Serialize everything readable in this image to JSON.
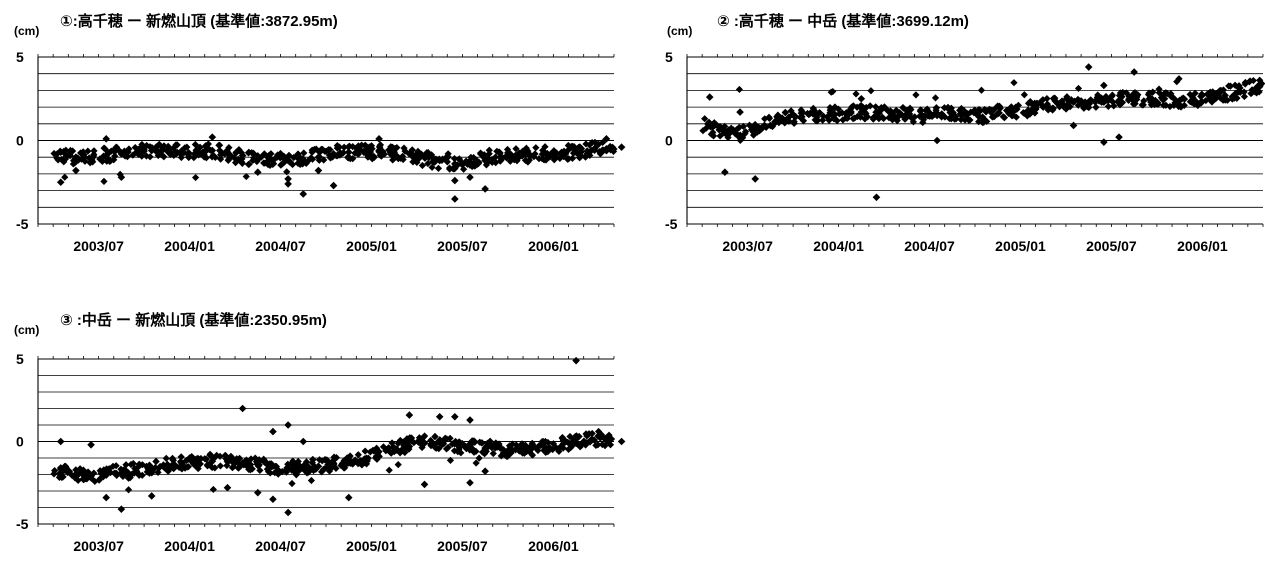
{
  "chart_data": [
    {
      "type": "scatter",
      "title": "①:高千穂 ー 新燃山頂 (基準値:3872.95m)",
      "ylabel": "(cm)",
      "ylim": [
        -5,
        5
      ],
      "yticks": [
        "5",
        "0",
        "-5"
      ],
      "xlim": [
        "2003-03",
        "2006-05"
      ],
      "xticks": [
        "2003/07",
        "2004/01",
        "2004/07",
        "2005/01",
        "2005/07",
        "2006/01"
      ],
      "grid": true,
      "series": [
        {
          "points": [
            [
              "2003-04",
              -0.7
            ],
            [
              "2003-05",
              -1.0
            ],
            [
              "2003-06",
              -1.1
            ],
            [
              "2003-07",
              -0.9
            ],
            [
              "2003-08",
              -0.8
            ],
            [
              "2003-09",
              -0.7
            ],
            [
              "2003-10",
              -0.6
            ],
            [
              "2003-11",
              -0.6
            ],
            [
              "2003-12",
              -0.6
            ],
            [
              "2004-01",
              -0.6
            ],
            [
              "2004-02",
              -0.6
            ],
            [
              "2004-03",
              -0.7
            ],
            [
              "2004-04",
              -0.9
            ],
            [
              "2004-05",
              -1.1
            ],
            [
              "2004-06",
              -1.2
            ],
            [
              "2004-07",
              -1.2
            ],
            [
              "2004-08",
              -1.2
            ],
            [
              "2004-09",
              -1.0
            ],
            [
              "2004-10",
              -0.8
            ],
            [
              "2004-11",
              -0.7
            ],
            [
              "2004-12",
              -0.7
            ],
            [
              "2005-01",
              -0.6
            ],
            [
              "2005-02",
              -0.7
            ],
            [
              "2005-03",
              -0.8
            ],
            [
              "2005-04",
              -1.0
            ],
            [
              "2005-05",
              -1.2
            ],
            [
              "2005-06",
              -1.4
            ],
            [
              "2005-07",
              -1.4
            ],
            [
              "2005-08",
              -1.2
            ],
            [
              "2005-09",
              -1.0
            ],
            [
              "2005-10",
              -0.9
            ],
            [
              "2005-11",
              -0.9
            ],
            [
              "2005-12",
              -0.8
            ],
            [
              "2006-01",
              -0.8
            ],
            [
              "2006-02",
              -0.7
            ],
            [
              "2006-03",
              -0.6
            ],
            [
              "2006-04",
              -0.5
            ],
            [
              "2006-05",
              -0.4
            ],
            [
              "2003-04",
              -2.5
            ],
            [
              "2003-05",
              -1.8
            ],
            [
              "2003-08",
              -2.2
            ],
            [
              "2003-07",
              0.1
            ],
            [
              "2004-02",
              0.2
            ],
            [
              "2004-05",
              -1.9
            ],
            [
              "2004-07",
              -2.6
            ],
            [
              "2004-08",
              -3.2
            ],
            [
              "2004-07",
              -2.3
            ],
            [
              "2004-09",
              -1.8
            ],
            [
              "2004-10",
              -2.7
            ],
            [
              "2005-01",
              0.1
            ],
            [
              "2005-06",
              -3.5
            ],
            [
              "2005-06",
              -2.4
            ],
            [
              "2005-07",
              -2.2
            ],
            [
              "2005-08",
              -2.9
            ],
            [
              "2006-04",
              0.1
            ]
          ]
        }
      ]
    },
    {
      "type": "scatter",
      "title": "② :高千穂 ー 中岳 (基準値:3699.12m)",
      "ylabel": "(cm)",
      "ylim": [
        -5,
        5
      ],
      "yticks": [
        "5",
        "0",
        "-5"
      ],
      "xlim": [
        "2003-03",
        "2006-05"
      ],
      "xticks": [
        "2003/07",
        "2004/01",
        "2004/07",
        "2005/01",
        "2005/07",
        "2006/01"
      ],
      "grid": true,
      "series": [
        {
          "points": [
            [
              "2003-04",
              1.0
            ],
            [
              "2003-05",
              0.6
            ],
            [
              "2003-06",
              0.3
            ],
            [
              "2003-07",
              0.5
            ],
            [
              "2003-08",
              0.9
            ],
            [
              "2003-09",
              1.2
            ],
            [
              "2003-10",
              1.4
            ],
            [
              "2003-11",
              1.5
            ],
            [
              "2003-12",
              1.6
            ],
            [
              "2004-01",
              1.6
            ],
            [
              "2004-02",
              1.7
            ],
            [
              "2004-03",
              1.7
            ],
            [
              "2004-04",
              1.7
            ],
            [
              "2004-05",
              1.6
            ],
            [
              "2004-06",
              1.5
            ],
            [
              "2004-07",
              1.5
            ],
            [
              "2004-08",
              1.6
            ],
            [
              "2004-09",
              1.6
            ],
            [
              "2004-10",
              1.4
            ],
            [
              "2004-11",
              1.6
            ],
            [
              "2004-12",
              1.7
            ],
            [
              "2005-01",
              1.8
            ],
            [
              "2005-02",
              2.0
            ],
            [
              "2005-03",
              2.2
            ],
            [
              "2005-04",
              2.3
            ],
            [
              "2005-05",
              2.3
            ],
            [
              "2005-06",
              2.3
            ],
            [
              "2005-07",
              2.4
            ],
            [
              "2005-08",
              2.5
            ],
            [
              "2005-09",
              2.5
            ],
            [
              "2005-10",
              2.5
            ],
            [
              "2005-11",
              2.4
            ],
            [
              "2005-12",
              2.4
            ],
            [
              "2006-01",
              2.5
            ],
            [
              "2006-02",
              2.7
            ],
            [
              "2006-03",
              2.9
            ],
            [
              "2006-04",
              3.1
            ],
            [
              "2006-05",
              3.4
            ],
            [
              "2003-04",
              2.6
            ],
            [
              "2003-05",
              -1.9
            ],
            [
              "2003-07",
              -2.3
            ],
            [
              "2004-03",
              -3.4
            ],
            [
              "2004-02",
              2.5
            ],
            [
              "2005-05",
              4.4
            ],
            [
              "2005-08",
              4.1
            ],
            [
              "2005-06",
              -0.1
            ],
            [
              "2005-07",
              0.2
            ],
            [
              "2005-06",
              3.3
            ],
            [
              "2004-07",
              0.0
            ],
            [
              "2003-06",
              1.7
            ],
            [
              "2005-04",
              0.9
            ]
          ]
        }
      ]
    },
    {
      "type": "scatter",
      "title": "③ :中岳 ー 新燃山頂 (基準値:2350.95m)",
      "ylabel": "(cm)",
      "ylim": [
        -5,
        5
      ],
      "yticks": [
        "5",
        "0",
        "-5"
      ],
      "xlim": [
        "2003-03",
        "2006-05"
      ],
      "xticks": [
        "2003/07",
        "2004/01",
        "2004/07",
        "2005/01",
        "2005/07",
        "2006/01"
      ],
      "grid": true,
      "series": [
        {
          "points": [
            [
              "2003-04",
              -1.6
            ],
            [
              "2003-05",
              -2.0
            ],
            [
              "2003-06",
              -2.1
            ],
            [
              "2003-07",
              -2.0
            ],
            [
              "2003-08",
              -1.9
            ],
            [
              "2003-09",
              -1.8
            ],
            [
              "2003-10",
              -1.6
            ],
            [
              "2003-11",
              -1.5
            ],
            [
              "2003-12",
              -1.3
            ],
            [
              "2004-01",
              -1.3
            ],
            [
              "2004-02",
              -1.2
            ],
            [
              "2004-03",
              -1.2
            ],
            [
              "2004-04",
              -1.3
            ],
            [
              "2004-05",
              -1.4
            ],
            [
              "2004-06",
              -1.5
            ],
            [
              "2004-07",
              -1.6
            ],
            [
              "2004-08",
              -1.6
            ],
            [
              "2004-09",
              -1.5
            ],
            [
              "2004-10",
              -1.4
            ],
            [
              "2004-11",
              -1.3
            ],
            [
              "2004-12",
              -1.1
            ],
            [
              "2005-01",
              -0.9
            ],
            [
              "2005-02",
              -0.6
            ],
            [
              "2005-03",
              -0.3
            ],
            [
              "2005-04",
              -0.1
            ],
            [
              "2005-05",
              0.0
            ],
            [
              "2005-06",
              -0.1
            ],
            [
              "2005-07",
              -0.3
            ],
            [
              "2005-08",
              -0.4
            ],
            [
              "2005-09",
              -0.4
            ],
            [
              "2005-10",
              -0.5
            ],
            [
              "2005-11",
              -0.5
            ],
            [
              "2005-12",
              -0.4
            ],
            [
              "2006-01",
              -0.3
            ],
            [
              "2006-02",
              -0.1
            ],
            [
              "2006-03",
              0.1
            ],
            [
              "2006-04",
              0.2
            ],
            [
              "2006-05",
              0.0
            ],
            [
              "2003-07",
              -3.4
            ],
            [
              "2003-08",
              -4.1
            ],
            [
              "2003-10",
              -3.3
            ],
            [
              "2003-04",
              0.0
            ],
            [
              "2003-06",
              -0.2
            ],
            [
              "2004-04",
              2.0
            ],
            [
              "2004-05",
              -3.1
            ],
            [
              "2004-06",
              -3.5
            ],
            [
              "2004-07",
              -4.3
            ],
            [
              "2004-07",
              1.0
            ],
            [
              "2004-06",
              0.6
            ],
            [
              "2004-08",
              0.0
            ],
            [
              "2004-11",
              -3.4
            ],
            [
              "2005-03",
              1.6
            ],
            [
              "2005-05",
              1.5
            ],
            [
              "2005-06",
              1.5
            ],
            [
              "2005-07",
              1.3
            ],
            [
              "2005-04",
              -2.6
            ],
            [
              "2005-07",
              -2.5
            ],
            [
              "2005-08",
              -1.8
            ],
            [
              "2006-02",
              4.9
            ],
            [
              "2004-03",
              -2.8
            ]
          ]
        }
      ]
    }
  ]
}
